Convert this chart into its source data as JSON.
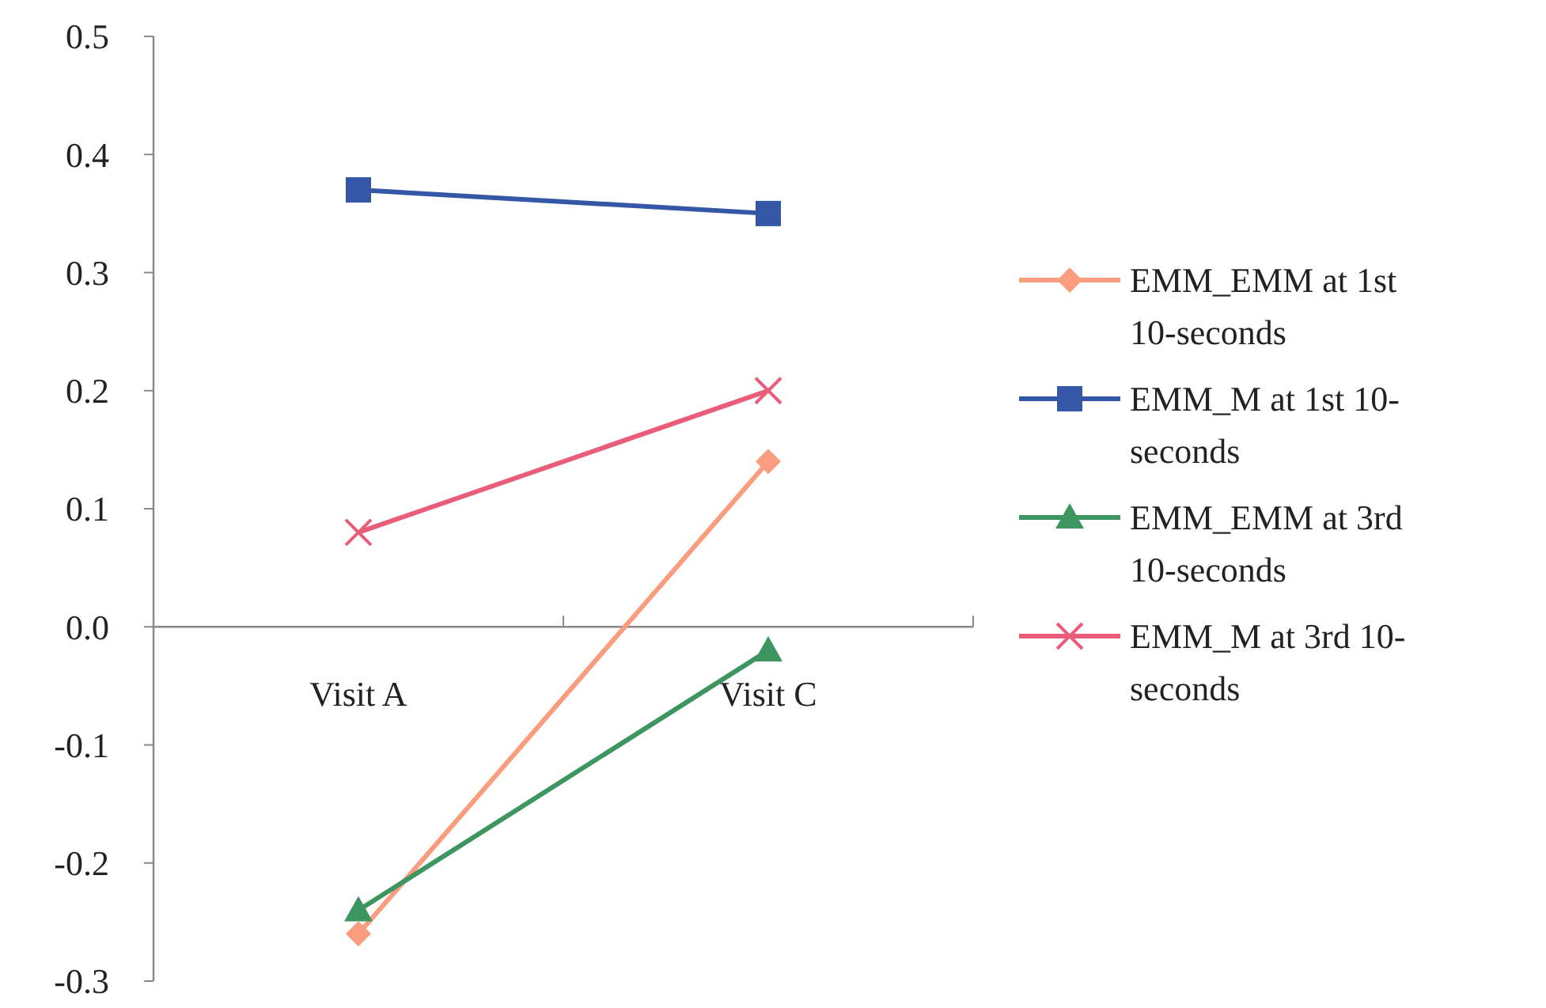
{
  "chart_data": {
    "type": "line",
    "categories": [
      "Visit A",
      "Visit C"
    ],
    "series": [
      {
        "name": "EMM_EMM at 1st 10-seconds",
        "color": "#fa9c7e",
        "marker": "diamond",
        "values": [
          -0.26,
          0.14
        ]
      },
      {
        "name": "EMM_M at 1st 10-seconds",
        "color": "#3457a6",
        "marker": "square",
        "values": [
          0.37,
          0.35
        ]
      },
      {
        "name": "EMM_EMM at 3rd 10-seconds",
        "color": "#3d9560",
        "marker": "triangle",
        "values": [
          -0.24,
          -0.02
        ]
      },
      {
        "name": "EMM_M at 3rd 10-seconds",
        "color": "#ea5d7a",
        "marker": "cross",
        "values": [
          0.08,
          0.2
        ]
      }
    ],
    "ylim": [
      -0.3,
      0.5
    ],
    "yticks": [
      {
        "value": -0.3,
        "label": "-0.3"
      },
      {
        "value": -0.2,
        "label": "-0.2"
      },
      {
        "value": -0.1,
        "label": "-0.1"
      },
      {
        "value": 0,
        "label": "0.0"
      },
      {
        "value": 0.1,
        "label": "0.1"
      },
      {
        "value": 0.2,
        "label": "0.2"
      },
      {
        "value": 0.3,
        "label": "0.3"
      },
      {
        "value": 0.4,
        "label": "0.4"
      },
      {
        "value": 0.5,
        "label": "0.5"
      }
    ],
    "grid": false,
    "legend": "right"
  }
}
